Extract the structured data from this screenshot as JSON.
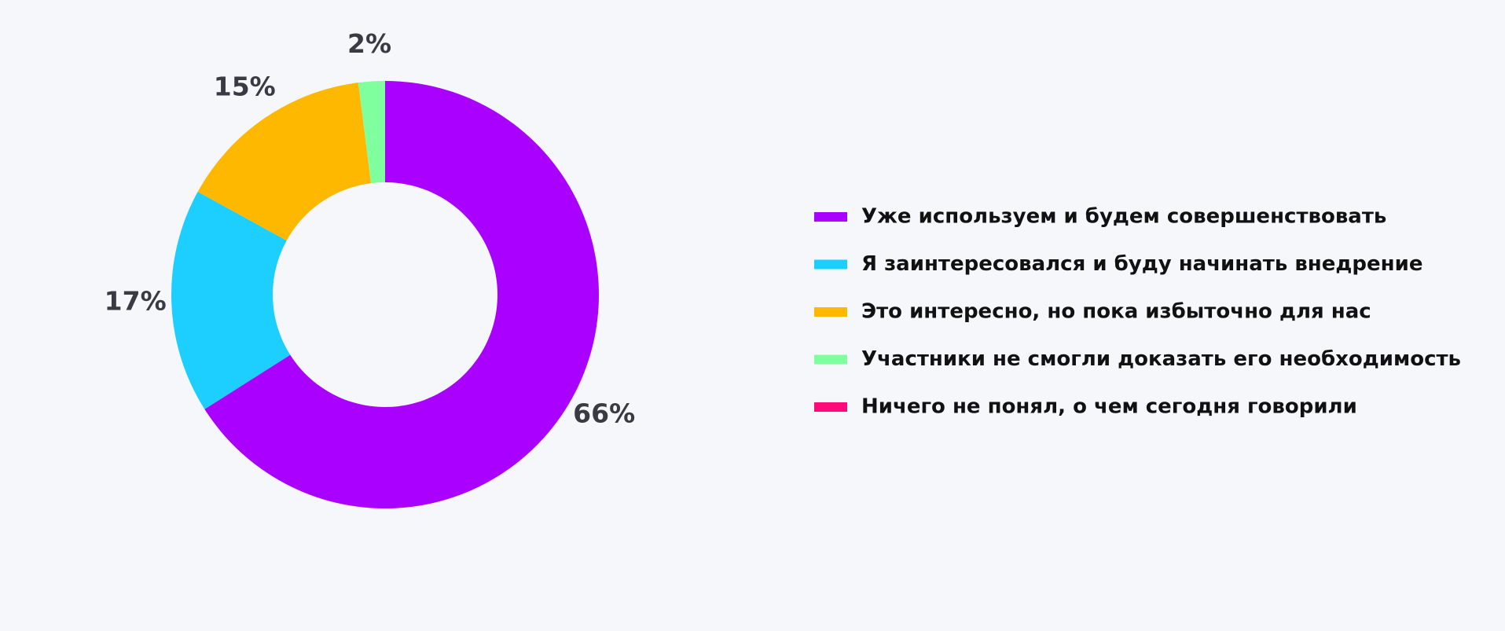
{
  "chart_data": {
    "type": "donut",
    "categories": [
      "Уже используем и будем совершенствовать",
      "Я заинтересовался и буду начинать внедрение",
      "Это интересно, но пока избыточно для нас",
      "Участники не смогли доказать его необходимость",
      "Ничего не понял, о чем сегодня говорили"
    ],
    "values": [
      66,
      17,
      15,
      2,
      0
    ],
    "value_labels": [
      "66%",
      "17%",
      "15%",
      "2%",
      null
    ],
    "colors": [
      "#aa00ff",
      "#1ccfff",
      "#ffb800",
      "#80ff9f",
      "#ff0a78"
    ],
    "legend": "right"
  }
}
